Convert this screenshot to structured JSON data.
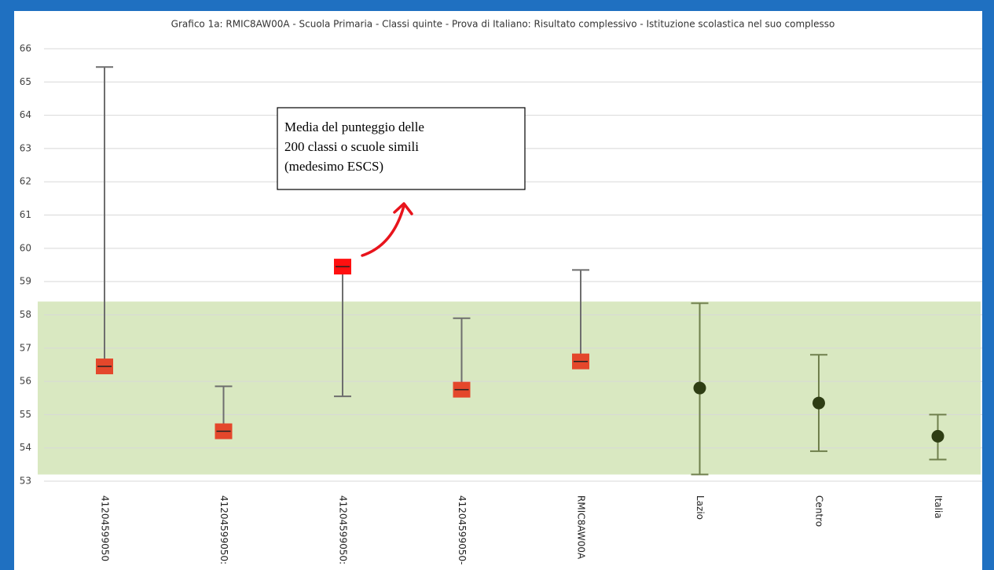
{
  "chart_data": {
    "type": "errorbar",
    "title": "Grafico 1a: RMIC8AW00A - Scuola Primaria - Classi quinte - Prova di Italiano: Risultato complessivo - Istituzione scolastica nel suo complesso",
    "categories": [
      "41204599050",
      "41204599050:",
      "41204599050:",
      "41204599050-",
      "RMIC8AW00A",
      "Lazio",
      "Centro",
      "Italia"
    ],
    "values": [
      56.45,
      54.5,
      59.45,
      55.75,
      56.6,
      55.8,
      55.35,
      54.35
    ],
    "low": [
      56.45,
      54.45,
      55.55,
      55.75,
      56.6,
      53.2,
      53.9,
      53.65
    ],
    "high": [
      65.45,
      55.85,
      59.4,
      57.9,
      59.35,
      58.35,
      56.8,
      55.0
    ],
    "markers": [
      "square",
      "square",
      "square",
      "square",
      "square",
      "circle",
      "circle",
      "circle"
    ],
    "colors": [
      "#e4472b",
      "#e4472b",
      "#ff1010",
      "#e4472b",
      "#e4472b",
      "#2e3d14",
      "#2e3d14",
      "#2e3d14"
    ],
    "bar_colors": [
      "#6e6e6e",
      "#6e6e6e",
      "#6e6e6e",
      "#6e6e6e",
      "#6e6e6e",
      "#6f7f4c",
      "#6f7f4c",
      "#6f7f4c"
    ],
    "band": [
      53.2,
      58.4
    ],
    "band_color": "#d9e8c1",
    "ylim": [
      53,
      66
    ],
    "yticks": [
      53,
      54,
      55,
      56,
      57,
      58,
      59,
      60,
      61,
      62,
      63,
      64,
      65,
      66
    ],
    "grid": true,
    "annotation": [
      "Media del punteggio delle",
      "200 classi o scuole simili",
      "(medesimo ESCS)"
    ]
  }
}
